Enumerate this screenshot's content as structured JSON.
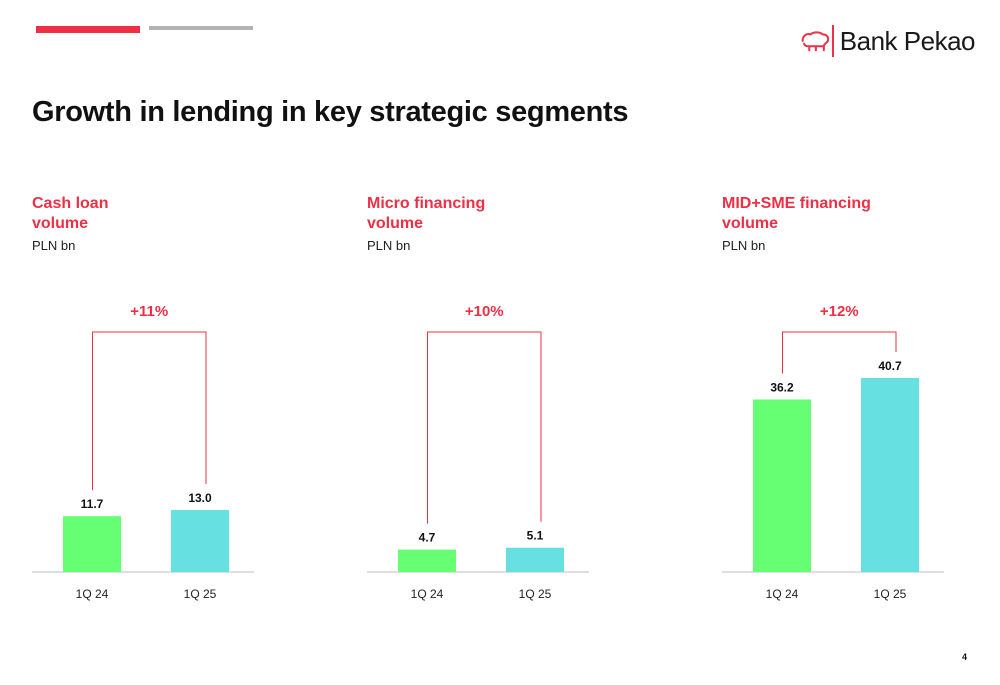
{
  "brand": {
    "name": "Bank Pekao",
    "colors": {
      "red": "#EE2F45",
      "grey": "#B3B3B3",
      "bar_1q24": "#66FF73",
      "bar_1q25": "#66E0E0",
      "axis": "#BFBFBF",
      "bracket": "#EE2F45"
    },
    "logo_icon": "bison-icon"
  },
  "title": "Growth in lending in key strategic segments",
  "page_number": "4",
  "chart_data": [
    {
      "type": "bar",
      "title": "Cash loan volume",
      "title_lines": [
        "Cash loan",
        "volume"
      ],
      "unit": "PLN bn",
      "categories": [
        "1Q 24",
        "1Q 25"
      ],
      "values": [
        11.7,
        13.0
      ],
      "value_labels": [
        "11.7",
        "13.0"
      ],
      "growth_label": "+11%"
    },
    {
      "type": "bar",
      "title": "Micro financing volume",
      "title_lines": [
        "Micro financing",
        "volume"
      ],
      "unit": "PLN bn",
      "categories": [
        "1Q 24",
        "1Q 25"
      ],
      "values": [
        4.7,
        5.1
      ],
      "value_labels": [
        "4.7",
        "5.1"
      ],
      "growth_label": "+10%"
    },
    {
      "type": "bar",
      "title": "MID+SME financing volume",
      "title_lines": [
        "MID+SME financing",
        "volume"
      ],
      "unit": "PLN bn",
      "categories": [
        "1Q 24",
        "1Q 25"
      ],
      "values": [
        36.2,
        40.7
      ],
      "value_labels": [
        "36.2",
        "40.7"
      ],
      "growth_label": "+12%"
    }
  ]
}
